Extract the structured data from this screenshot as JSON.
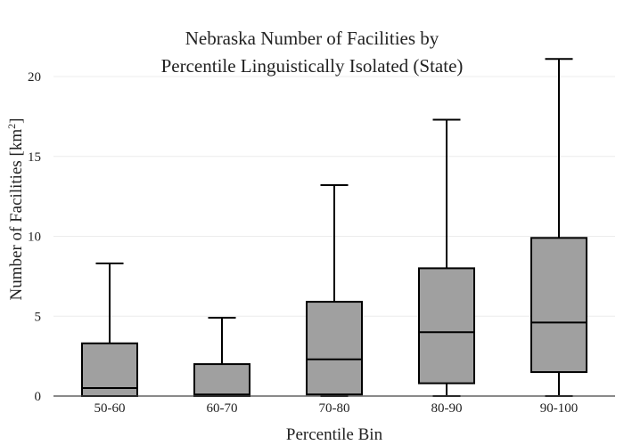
{
  "chart_data": {
    "type": "box",
    "title_lines": [
      "Nebraska Number of Facilities by",
      "Percentile Linguistically Isolated (State)"
    ],
    "xlabel": "Percentile Bin",
    "ylabel_main": "Number of Facilities  [km",
    "ylabel_sup": "2",
    "ylabel_end": "]",
    "ylim": [
      0,
      22
    ],
    "yticks": [
      0,
      5,
      10,
      15,
      20
    ],
    "grid": true,
    "legend": "none",
    "colors": {
      "box_fill": "#a0a0a0",
      "box_stroke": "#000000"
    },
    "categories": [
      "50-60",
      "60-70",
      "70-80",
      "80-90",
      "90-100"
    ],
    "boxes": [
      {
        "min": 0,
        "q1": 0,
        "median": 0.5,
        "q3": 3.3,
        "max": 8.3
      },
      {
        "min": 0,
        "q1": 0,
        "median": 0.1,
        "q3": 2.0,
        "max": 4.9
      },
      {
        "min": 0,
        "q1": 0.1,
        "median": 2.3,
        "q3": 5.9,
        "max": 13.2
      },
      {
        "min": 0,
        "q1": 0.8,
        "median": 4.0,
        "q3": 8.0,
        "max": 17.3
      },
      {
        "min": 0,
        "q1": 1.5,
        "median": 4.6,
        "q3": 9.9,
        "max": 21.1
      }
    ]
  }
}
